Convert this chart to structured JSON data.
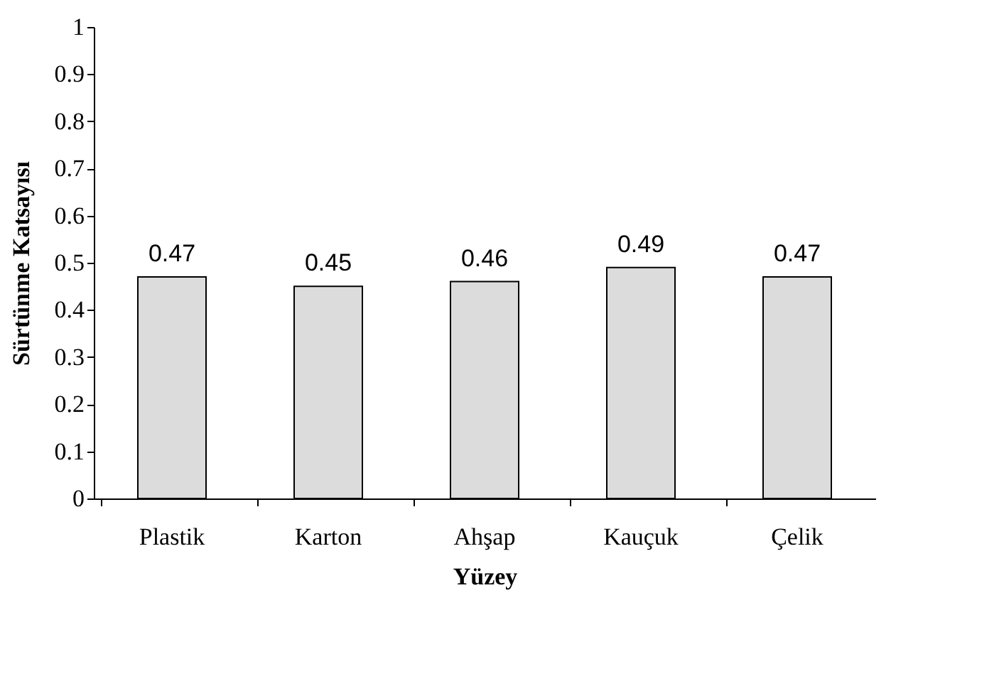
{
  "chart_data": {
    "type": "bar",
    "xlabel": "Yüzey",
    "ylabel": "Sürtünme Katsayısı",
    "categories": [
      "Plastik",
      "Karton",
      "Ahşap",
      "Kauçuk",
      "Çelik"
    ],
    "values": [
      0.47,
      0.45,
      0.46,
      0.49,
      0.47
    ],
    "color": "#dcdcdc",
    "ylim": [
      0,
      1
    ],
    "yticks": [
      0,
      0.1,
      0.2,
      0.3,
      0.4,
      0.5,
      0.6,
      0.7,
      0.8,
      0.9,
      1
    ],
    "grid": false,
    "data_labels": true
  }
}
